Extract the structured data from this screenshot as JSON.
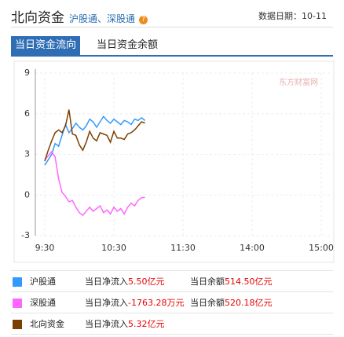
{
  "header": {
    "title": "北向资金",
    "subtitle": "沪股通、深股通",
    "date_label": "数据日期：",
    "date": "10-11"
  },
  "tabs": [
    "当日资金流向",
    "当日资金余额"
  ],
  "watermark": "东方财富网",
  "chart_data": {
    "type": "line",
    "x": [
      "9:30",
      "9:33",
      "9:36",
      "9:39",
      "9:42",
      "9:45",
      "9:48",
      "9:51",
      "9:54",
      "9:57",
      "10:00",
      "10:03",
      "10:06",
      "10:09",
      "10:12",
      "10:15",
      "10:18",
      "10:21",
      "10:24",
      "10:27",
      "10:30",
      "10:33",
      "10:36",
      "10:39",
      "10:42",
      "10:45",
      "10:48",
      "10:51",
      "10:54",
      "10:57"
    ],
    "series": [
      {
        "name": "沪股通",
        "color": "#3399ff",
        "values": [
          2.2,
          2.6,
          3.0,
          3.8,
          3.6,
          4.4,
          5.2,
          4.6,
          4.9,
          5.3,
          5.0,
          4.8,
          5.1,
          5.6,
          5.4,
          5.0,
          5.4,
          5.8,
          5.5,
          5.3,
          5.6,
          5.4,
          5.2,
          5.5,
          5.4,
          5.2,
          5.6,
          5.5,
          5.7,
          5.5
        ]
      },
      {
        "name": "深股通",
        "color": "#ff66ff",
        "values": [
          2.6,
          2.9,
          3.2,
          2.8,
          1.2,
          0.2,
          -0.1,
          -0.5,
          -0.4,
          -0.9,
          -1.3,
          -1.5,
          -1.2,
          -0.9,
          -1.2,
          -1.0,
          -0.8,
          -1.3,
          -1.1,
          -1.4,
          -0.9,
          -1.2,
          -1.0,
          -1.4,
          -0.9,
          -0.6,
          -0.8,
          -0.4,
          -0.2,
          -0.18
        ]
      },
      {
        "name": "北向资金",
        "color": "#7b3f00",
        "values": [
          2.5,
          3.3,
          4.0,
          4.6,
          4.8,
          4.6,
          5.1,
          6.3,
          4.5,
          4.4,
          3.7,
          3.3,
          3.9,
          4.7,
          4.2,
          4.0,
          4.6,
          4.5,
          4.4,
          3.9,
          4.7,
          4.2,
          4.2,
          4.1,
          4.5,
          4.6,
          4.8,
          5.1,
          5.4,
          5.32
        ]
      }
    ],
    "ylim": [
      -3,
      9
    ],
    "yticks": [
      -3,
      0,
      3,
      6,
      9
    ],
    "xticks": [
      "9:30",
      "10:30",
      "11:30",
      "14:00",
      "15:00"
    ],
    "grid": true
  },
  "summary": {
    "rows": [
      {
        "net_label": "当日净流入",
        "net": "5.50亿元",
        "balance_label": "当日余额",
        "balance": "514.50亿元"
      },
      {
        "net_label": "当日净流入",
        "net": "-1763.28万元",
        "balance_label": "当日余额",
        "balance": "520.18亿元"
      },
      {
        "net_label": "当日净流入",
        "net": "5.32亿元"
      }
    ]
  }
}
